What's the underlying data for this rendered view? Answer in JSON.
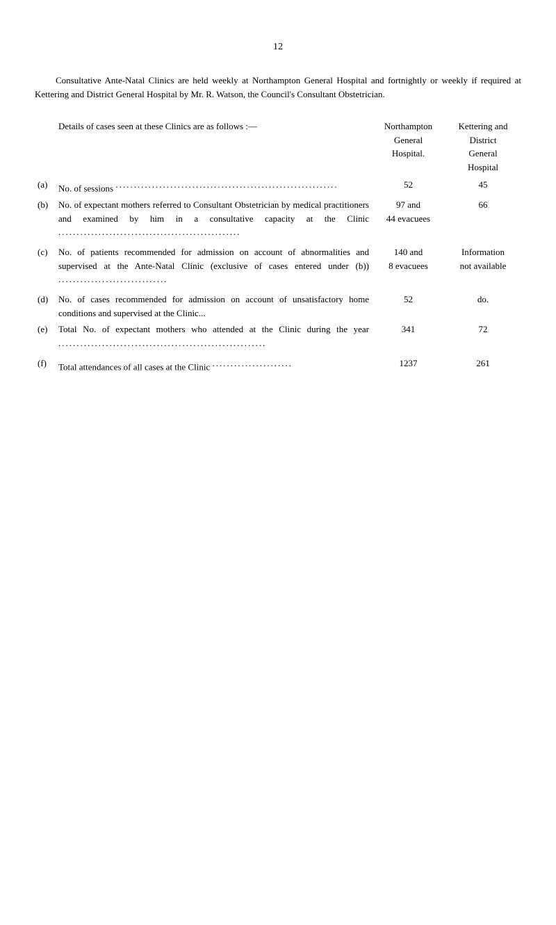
{
  "pageNumber": "12",
  "intro": "Consultative Ante-Natal Clinics are held weekly at Northampton General Hospital and fortnightly or weekly if required at Kettering and District General Hospital by Mr. R. Watson, the Council's Consultant Obstetrician.",
  "header": {
    "left": "Details of cases seen at these Clinics are as follows :—",
    "col1_line1": "Northampton",
    "col1_line2": "General",
    "col1_line3": "Hospital.",
    "col2_line1": "Kettering and",
    "col2_line2": "District",
    "col2_line3": "General",
    "col2_line4": "Hospital"
  },
  "rows": [
    {
      "label": "(a)",
      "desc": "No. of sessions",
      "dots": ".............................................................",
      "n": "52",
      "k": "45"
    },
    {
      "label": "(b)",
      "desc": "No. of expectant mothers referred to Consultant Obstetrician by medical practitioners and examined by him in a consultative capacity at the Clinic",
      "dots": "..................................................",
      "n_line1": "97 and",
      "n_line2": "44 evacuees",
      "k": "66"
    },
    {
      "label": "(c)",
      "desc": "No. of patients recommended for admission on account of abnormalities and supervised at the Ante-Natal Clinic (exclusive of cases entered under (b))",
      "dots": "..............................",
      "n_line1": "140 and",
      "n_line2": "8 evacuees",
      "k_line1": "Information",
      "k_line2": "not available"
    },
    {
      "label": "(d)",
      "desc": "No. of cases recommended for admission on account of unsatisfactory home conditions and supervised at the Clinic...",
      "n": "52",
      "k": "do."
    },
    {
      "label": "(e)",
      "desc": "Total No. of expectant mothers who attended at the Clinic during the year",
      "dots": ".........................................................",
      "n": "341",
      "k": "72"
    },
    {
      "label": "(f)",
      "desc": "Total attendances of all cases at the Clinic",
      "dots": "......................",
      "n": "1237",
      "k": "261"
    }
  ]
}
